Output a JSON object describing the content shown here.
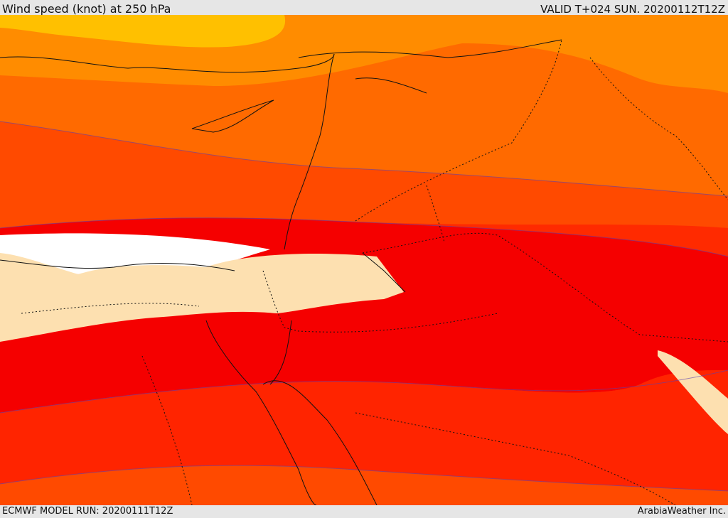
{
  "header": {
    "title": "Wind speed (knot) at 250 hPa",
    "valid": "VALID T+024 SUN. 20200112T12Z"
  },
  "footer": {
    "model_run": "ECMWF MODEL RUN: 20200111T12Z",
    "credit": "ArabiaWeather Inc."
  },
  "legend_colors": {
    "yellow": "#ffc000",
    "orange": "#ff8c00",
    "dark_orange": "#ff6600",
    "red_orange": "#ff4000",
    "scarlet": "#ff2000",
    "red": "#f50000",
    "light": "#fde0b0",
    "white": "#ffffff"
  }
}
